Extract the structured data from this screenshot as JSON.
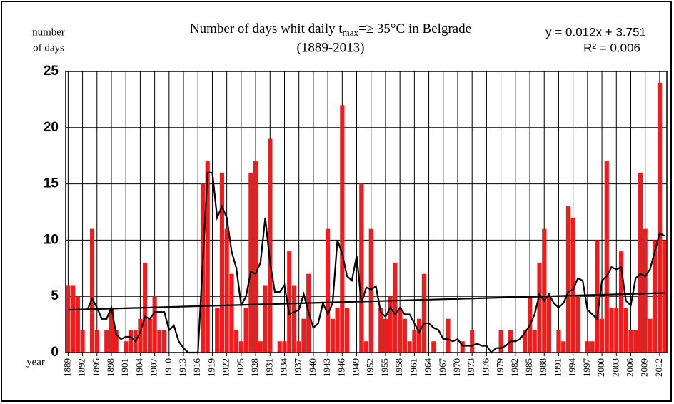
{
  "chart_data": {
    "type": "bar",
    "title": {
      "text": "Number of days whit daily t",
      "subscript": "max",
      "rest": "=≥ 35°C in Belgrade"
    },
    "subtitle": "(1889-2013)",
    "y_label": [
      "number",
      "of days"
    ],
    "x_label": "year",
    "annotation": [
      "y = 0.012x + 3.751",
      "R² = 0.006"
    ],
    "categories": [
      "1889",
      null,
      null,
      "1892",
      null,
      null,
      "1895",
      null,
      null,
      "1898",
      null,
      null,
      "1901",
      null,
      null,
      "1904",
      null,
      null,
      "1907",
      null,
      null,
      "1910",
      null,
      null,
      "1913",
      null,
      null,
      "1916",
      null,
      null,
      "1919",
      null,
      null,
      "1922",
      null,
      null,
      "1925",
      null,
      null,
      "1928",
      null,
      null,
      "1931",
      null,
      null,
      "1934",
      null,
      null,
      "1937",
      null,
      null,
      "1940",
      null,
      null,
      "1943",
      null,
      null,
      "1946",
      null,
      null,
      "1949",
      null,
      null,
      "1952",
      null,
      null,
      "1955",
      null,
      null,
      "1958",
      null,
      null,
      "1961",
      null,
      null,
      "1964",
      null,
      null,
      "1967",
      null,
      null,
      "1970",
      null,
      null,
      "1973",
      null,
      null,
      "1976",
      null,
      null,
      "1979",
      null,
      null,
      "1982",
      null,
      null,
      "1985",
      null,
      null,
      "1988",
      null,
      null,
      "1991",
      null,
      null,
      "1994",
      null,
      null,
      "1997",
      null,
      null,
      "2000",
      null,
      null,
      "2003",
      null,
      null,
      "2006",
      null,
      null,
      "2009",
      null,
      null,
      "2012",
      null
    ],
    "series": [
      {
        "type": "bar",
        "color": "#ee1c1c",
        "values": [
          6,
          6,
          5,
          2,
          0,
          11,
          2,
          0,
          2,
          4,
          2,
          0,
          1,
          2,
          2,
          3,
          8,
          3,
          5,
          2,
          2,
          0,
          0,
          0,
          0,
          0,
          0,
          0,
          15,
          17,
          0,
          4,
          16,
          11,
          7,
          2,
          1,
          4,
          16,
          17,
          1,
          6,
          19,
          0,
          1,
          1,
          9,
          6,
          1,
          3,
          7,
          0,
          0,
          0,
          11,
          3,
          4,
          22,
          4,
          0,
          0,
          15,
          1,
          11,
          0,
          4,
          3,
          5,
          8,
          4,
          3,
          1,
          2,
          3,
          7,
          0,
          1,
          0,
          0,
          3,
          0,
          0,
          1,
          0,
          2,
          0,
          0,
          0,
          0,
          0,
          2,
          0,
          2,
          0,
          0,
          2,
          5,
          2,
          8,
          11,
          5,
          0,
          2,
          1,
          13,
          12,
          5,
          0,
          1,
          1,
          10,
          3,
          17,
          4,
          4,
          9,
          4,
          2,
          2,
          16,
          11,
          3,
          10,
          24,
          10
        ]
      },
      {
        "type": "line",
        "color": "#000000",
        "values": [
          null,
          null,
          null,
          null,
          3.8,
          4.8,
          4,
          3,
          3,
          4,
          1.6,
          1.2,
          1.4,
          1.4,
          1,
          1.8,
          3.2,
          3,
          3.6,
          3.6,
          3.6,
          2,
          2.4,
          1,
          0.4,
          0,
          0,
          0,
          8,
          16,
          16,
          12,
          13,
          12,
          9,
          7.5,
          4.2,
          5,
          7.2,
          7,
          8,
          12,
          8,
          5.4,
          5.4,
          6,
          3.4,
          3.6,
          3.8,
          5.2,
          3.6,
          2.2,
          2.6,
          4.4,
          3.4,
          4.4,
          10,
          8.8,
          6.8,
          6.4,
          8.6,
          4.4,
          5.8,
          5.6,
          5.9,
          3.6,
          3.2,
          4,
          3.4,
          4,
          3.4,
          3.4,
          2.6,
          1.8,
          2.6,
          2.6,
          2.2,
          2,
          1.2,
          1.2,
          1,
          1.2,
          0.6,
          0.6,
          0.6,
          0.8,
          0.6,
          0.6,
          0,
          0.4,
          0.4,
          0.6,
          1,
          1,
          1.2,
          1.8,
          2.4,
          3.4,
          5.2,
          4.6,
          5.2,
          4.4,
          4,
          4.4,
          5.4,
          5.6,
          6.6,
          6.4,
          3.8,
          3.4,
          3,
          6.4,
          6.8,
          7.6,
          7.4,
          7.6,
          4.6,
          4.2,
          6.6,
          7,
          6.8,
          7.4,
          9,
          10.6,
          10.4
        ]
      }
    ],
    "trend": {
      "color": "#000000",
      "values": [
        3.8,
        5.3
      ]
    },
    "ylim": [
      0,
      25
    ],
    "yticks": [
      0,
      5,
      10,
      15,
      20,
      25
    ],
    "grid": true
  }
}
